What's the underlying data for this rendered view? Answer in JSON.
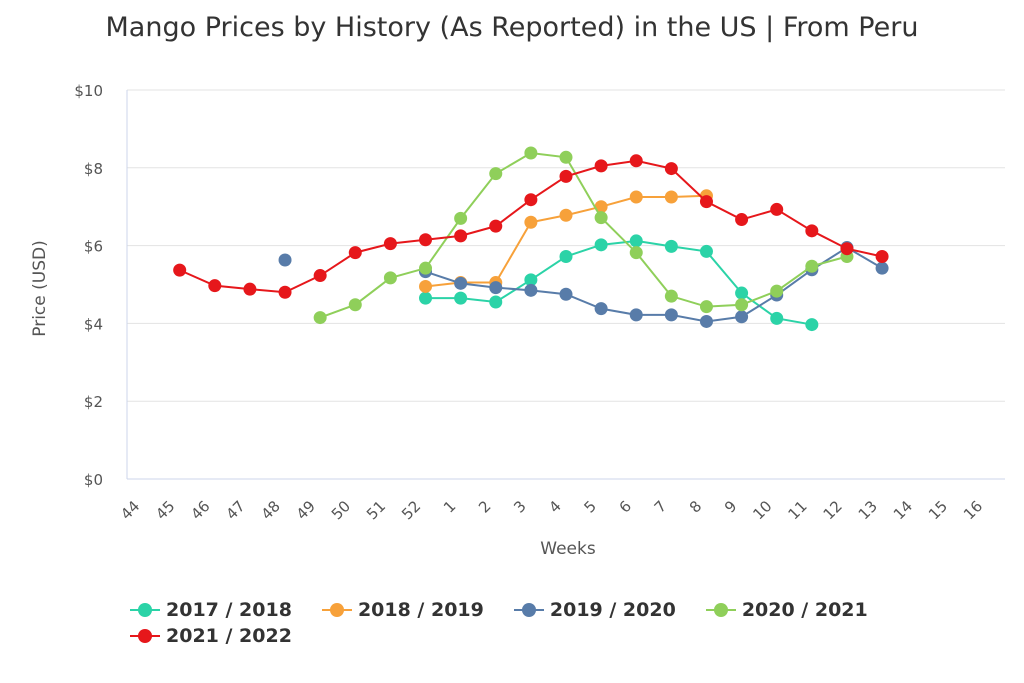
{
  "chart_data": {
    "type": "line",
    "title": "Mango Prices by History (As Reported) in the US | From Peru",
    "xlabel": "Weeks",
    "ylabel": "Price (USD)",
    "ylim": [
      0,
      10
    ],
    "yticks": [
      "$0",
      "$2",
      "$4",
      "$6",
      "$8",
      "$10"
    ],
    "categories": [
      "44",
      "45",
      "46",
      "47",
      "48",
      "49",
      "50",
      "51",
      "52",
      "1",
      "2",
      "3",
      "4",
      "5",
      "6",
      "7",
      "8",
      "9",
      "10",
      "11",
      "12",
      "13",
      "14",
      "15",
      "16"
    ],
    "grid": true,
    "legend_position": "bottom",
    "series": [
      {
        "name": "2017 / 2018",
        "color": "#2bd3a7",
        "values": [
          null,
          null,
          null,
          null,
          null,
          null,
          null,
          null,
          4.65,
          4.65,
          4.55,
          5.12,
          5.72,
          6.02,
          6.12,
          5.98,
          5.85,
          4.78,
          4.13,
          3.97,
          null,
          null,
          null,
          null,
          null
        ]
      },
      {
        "name": "2018 / 2019",
        "color": "#f7a13a",
        "values": [
          null,
          null,
          null,
          null,
          null,
          null,
          null,
          null,
          4.95,
          5.05,
          5.05,
          6.6,
          6.78,
          7.0,
          7.25,
          7.25,
          7.28,
          null,
          null,
          null,
          null,
          null,
          null,
          null,
          null
        ]
      },
      {
        "name": "2019 / 2020",
        "color": "#587ca9",
        "values": [
          null,
          null,
          null,
          null,
          5.63,
          null,
          null,
          null,
          5.33,
          5.03,
          4.92,
          4.85,
          4.75,
          4.38,
          4.22,
          4.22,
          4.05,
          4.17,
          4.73,
          5.38,
          5.95,
          5.42,
          null,
          null,
          null
        ]
      },
      {
        "name": "2020 / 2021",
        "color": "#8fcf5a",
        "values": [
          null,
          null,
          null,
          null,
          null,
          4.15,
          4.48,
          5.17,
          5.42,
          6.7,
          7.85,
          8.38,
          8.27,
          6.72,
          5.82,
          4.7,
          4.43,
          4.48,
          4.83,
          5.47,
          5.72,
          null,
          null,
          null,
          null
        ]
      },
      {
        "name": "2021 / 2022",
        "color": "#e6171b",
        "values": [
          null,
          5.37,
          4.97,
          4.88,
          4.8,
          5.23,
          5.82,
          6.05,
          6.15,
          6.25,
          6.5,
          7.18,
          7.78,
          8.05,
          8.18,
          7.98,
          7.13,
          6.67,
          6.93,
          6.38,
          5.92,
          5.72,
          null,
          null,
          null
        ]
      }
    ]
  }
}
